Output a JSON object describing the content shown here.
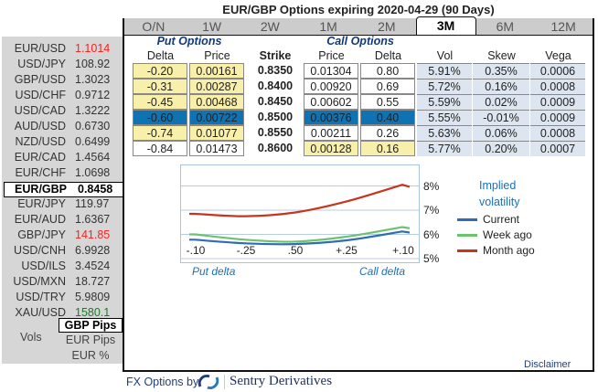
{
  "title": "EUR/GBP Options expiring 2020-04-29 (90 Days)",
  "tabs": [
    "O/N",
    "1W",
    "2W",
    "1M",
    "2M",
    "3M",
    "6M",
    "12M"
  ],
  "active_tab": "3M",
  "sidebar": {
    "pairs": [
      {
        "name": "EUR/USD",
        "value": "1.1014",
        "color": "#ff2020"
      },
      {
        "name": "USD/JPY",
        "value": "108.92"
      },
      {
        "name": "GBP/USD",
        "value": "1.3023"
      },
      {
        "name": "USD/CHF",
        "value": "0.9712"
      },
      {
        "name": "USD/CAD",
        "value": "1.3222"
      },
      {
        "name": "AUD/USD",
        "value": "0.6730"
      },
      {
        "name": "NZD/USD",
        "value": "0.6499"
      },
      {
        "name": "EUR/CAD",
        "value": "1.4564"
      },
      {
        "name": "EUR/CHF",
        "value": "1.0698"
      },
      {
        "name": "EUR/GBP",
        "value": "0.8458",
        "selected": true
      },
      {
        "name": "EUR/JPY",
        "value": "119.97"
      },
      {
        "name": "EUR/AUD",
        "value": "1.6367"
      },
      {
        "name": "GBP/JPY",
        "value": "141.85",
        "color": "#ff2020"
      },
      {
        "name": "USD/CNH",
        "value": "6.9928"
      },
      {
        "name": "USD/ILS",
        "value": "3.4524"
      },
      {
        "name": "USD/MXN",
        "value": "18.727"
      },
      {
        "name": "USD/TRY",
        "value": "5.9809"
      },
      {
        "name": "XAU/USD",
        "value": "1580.1",
        "color": "#1a7a2a"
      }
    ],
    "vols_label": "Vols",
    "units": [
      "GBP Pips",
      "EUR Pips",
      "EUR %"
    ],
    "selected_unit": "GBP Pips"
  },
  "table": {
    "put_header": "Put Options",
    "call_header": "Call Options",
    "columns": [
      "Delta",
      "Price",
      "Strike",
      "Price",
      "Delta",
      "Vol",
      "Skew",
      "Vega"
    ],
    "rows": [
      {
        "put_delta": "-0.20",
        "put_price": "0.00161",
        "strike": "0.8350",
        "call_price": "0.01304",
        "call_delta": "0.80",
        "vol": "5.91%",
        "skew": "0.35%",
        "vega": "0.0006",
        "put_bg": "yellow",
        "call_bg": "white"
      },
      {
        "put_delta": "-0.31",
        "put_price": "0.00287",
        "strike": "0.8400",
        "call_price": "0.00920",
        "call_delta": "0.69",
        "vol": "5.72%",
        "skew": "0.16%",
        "vega": "0.0008",
        "put_bg": "yellow",
        "call_bg": "white"
      },
      {
        "put_delta": "-0.45",
        "put_price": "0.00468",
        "strike": "0.8450",
        "call_price": "0.00602",
        "call_delta": "0.55",
        "vol": "5.59%",
        "skew": "0.02%",
        "vega": "0.0009",
        "put_bg": "yellow",
        "call_bg": "white"
      },
      {
        "put_delta": "-0.60",
        "put_price": "0.00722",
        "strike": "0.8500",
        "call_price": "0.00376",
        "call_delta": "0.40",
        "vol": "5.55%",
        "skew": "-0.01%",
        "vega": "0.0009",
        "put_bg": "blue",
        "call_bg": "blue"
      },
      {
        "put_delta": "-0.74",
        "put_price": "0.01077",
        "strike": "0.8550",
        "call_price": "0.00211",
        "call_delta": "0.26",
        "vol": "5.63%",
        "skew": "0.06%",
        "vega": "0.0008",
        "put_bg": "yellow",
        "call_bg": "white"
      },
      {
        "put_delta": "-0.84",
        "put_price": "0.01473",
        "strike": "0.8600",
        "call_price": "0.00128",
        "call_delta": "0.16",
        "vol": "5.77%",
        "skew": "0.20%",
        "vega": "0.0007",
        "put_bg": "white",
        "call_bg": "yellow"
      }
    ]
  },
  "chart_data": {
    "type": "line",
    "categories": [
      "-.10",
      "-.25",
      ".50",
      "+.25",
      "+.10"
    ],
    "y_ticks": [
      "8%",
      "7%",
      "6%",
      "5%"
    ],
    "ylim": [
      5,
      8.3
    ],
    "xlabel_left": "Put delta",
    "xlabel_right": "Call delta",
    "legend_title": "Implied volatility",
    "series": [
      {
        "name": "Current",
        "color": "#2f6db3",
        "values": [
          5.78,
          5.63,
          5.6,
          5.75,
          6.12
        ]
      },
      {
        "name": "Week ago",
        "color": "#6cc36c",
        "values": [
          6.0,
          5.78,
          5.7,
          5.9,
          6.3
        ]
      },
      {
        "name": "Month ago",
        "color": "#c8341c",
        "values": [
          6.85,
          6.75,
          6.9,
          7.35,
          8.05
        ]
      }
    ]
  },
  "footer": {
    "disclaimer": "Disclaimer",
    "by": "FX Options by",
    "brand": "Sentry Derivatives"
  }
}
